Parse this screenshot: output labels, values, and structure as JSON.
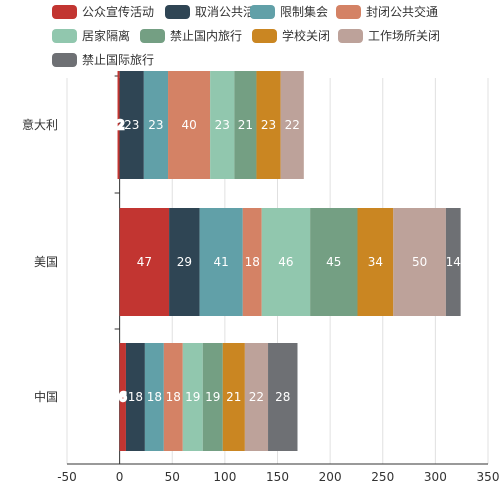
{
  "chart_data": {
    "type": "bar",
    "orientation": "horizontal",
    "stacked": true,
    "categories": [
      "意大利",
      "美国",
      "中国"
    ],
    "xlim": [
      -50,
      350
    ],
    "xticks": [
      -50,
      0,
      50,
      100,
      150,
      200,
      250,
      300,
      350
    ],
    "grid": true,
    "legend_position": "top",
    "series": [
      {
        "name": "公众宣传活动",
        "color": "#c23531",
        "values": [
          -2,
          47,
          6
        ]
      },
      {
        "name": "取消公共活动",
        "color": "#2f4554",
        "values": [
          23,
          29,
          18
        ]
      },
      {
        "name": "限制集会",
        "color": "#61a0a8",
        "values": [
          23,
          41,
          18
        ]
      },
      {
        "name": "封闭公共交通",
        "color": "#d48265",
        "values": [
          40,
          18,
          18
        ]
      },
      {
        "name": "居家隔离",
        "color": "#91c7ae",
        "values": [
          23,
          46,
          19
        ]
      },
      {
        "name": "禁止国内旅行",
        "color": "#749f83",
        "values": [
          21,
          45,
          19
        ]
      },
      {
        "name": "学校关闭",
        "color": "#ca8622",
        "values": [
          23,
          34,
          21
        ]
      },
      {
        "name": "工作场所关闭",
        "color": "#bda29a",
        "values": [
          22,
          50,
          22
        ]
      },
      {
        "name": "禁止国际旅行",
        "color": "#6e7074",
        "values": [
          0,
          14,
          28
        ]
      }
    ]
  }
}
